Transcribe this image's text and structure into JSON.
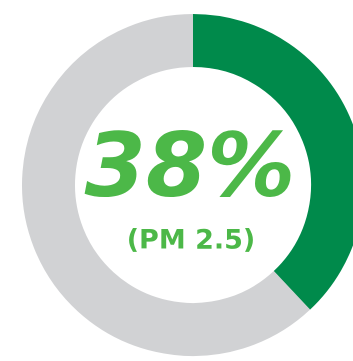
{
  "chart_data": {
    "type": "donut",
    "values": [
      38,
      62
    ],
    "value_labels": [
      "38%",
      null
    ],
    "colors": [
      "#008a4b",
      "#d1d2d4"
    ],
    "center_label": "(PM 2.5)"
  }
}
